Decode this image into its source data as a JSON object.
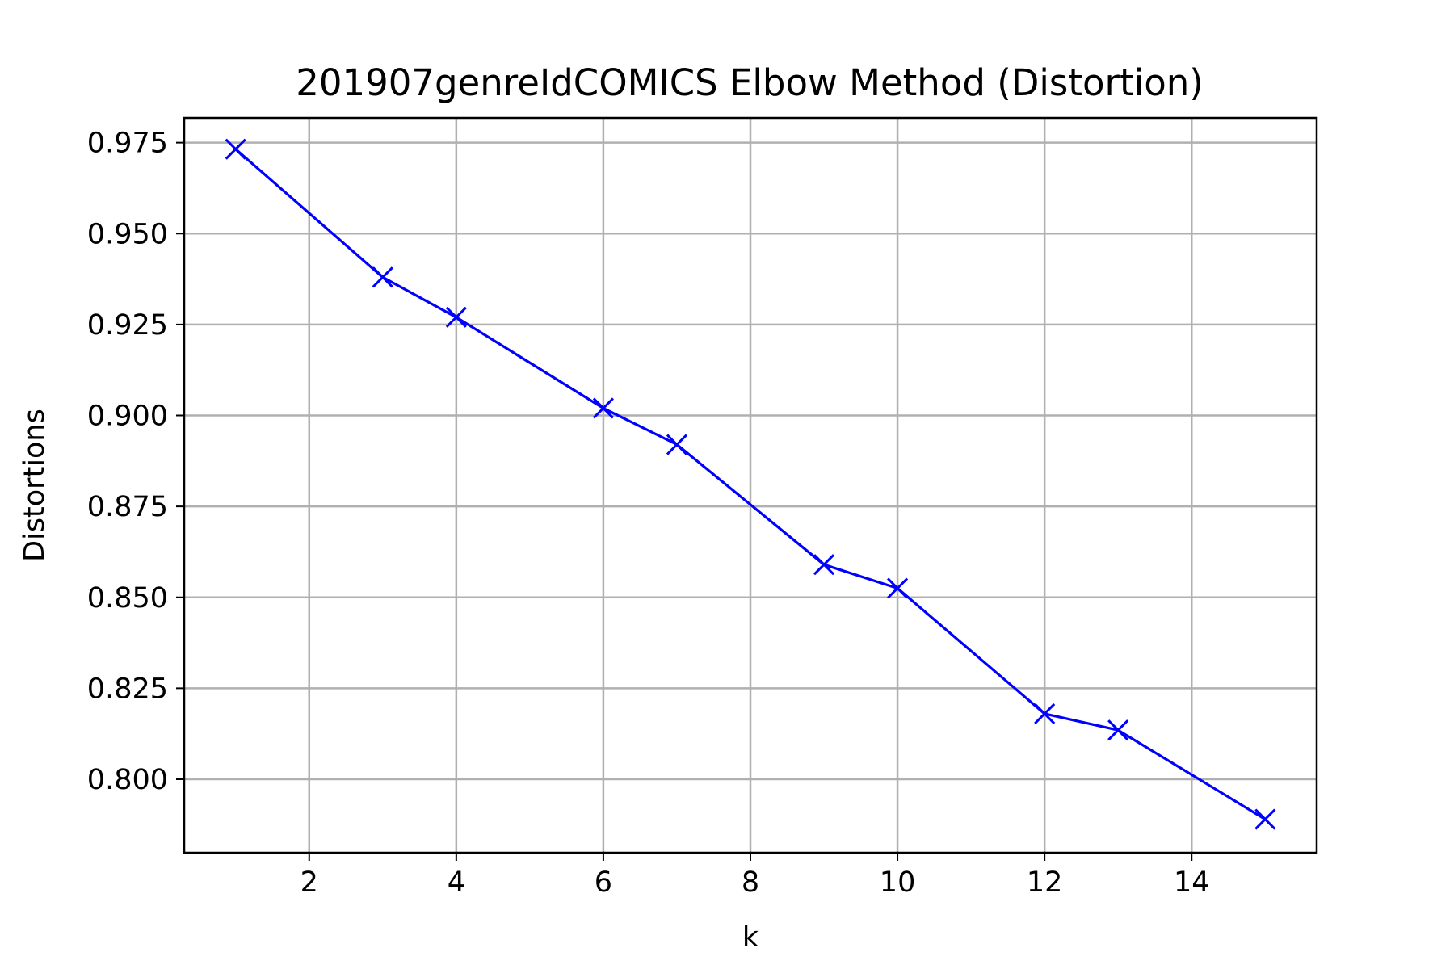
{
  "chart_data": {
    "type": "line",
    "title": "201907genreIdCOMICS Elbow Method (Distortion)",
    "xlabel": "k",
    "ylabel": "Distortions",
    "x": [
      1,
      3,
      4,
      6,
      7,
      9,
      10,
      12,
      13,
      15
    ],
    "series": [
      {
        "values": [
          0.9732,
          0.938,
          0.927,
          0.902,
          0.892,
          0.859,
          0.8525,
          0.818,
          0.8135,
          0.789
        ]
      }
    ],
    "xlim": [
      0.3,
      15.7
    ],
    "ylim": [
      0.7798,
      0.9818
    ],
    "xticks": [
      2,
      4,
      6,
      8,
      10,
      12,
      14
    ],
    "yticks": [
      0.8,
      0.825,
      0.85,
      0.875,
      0.9,
      0.925,
      0.95,
      0.975
    ],
    "xtick_labels": [
      "2",
      "4",
      "6",
      "8",
      "10",
      "12",
      "14"
    ],
    "ytick_labels": [
      "0.800",
      "0.825",
      "0.850",
      "0.875",
      "0.900",
      "0.925",
      "0.950",
      "0.975"
    ],
    "marker": "x",
    "line_color": "#0000ff",
    "grid": true,
    "legend": "none"
  }
}
